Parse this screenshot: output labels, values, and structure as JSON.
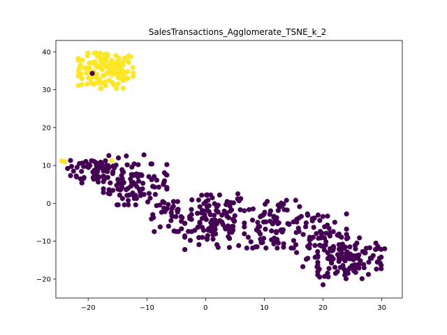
{
  "chart_data": {
    "type": "scatter",
    "title": "SalesTransactions_Agglomerate_TSNE_k_2",
    "xlabel": "",
    "ylabel": "",
    "xlim": [
      -25.5,
      33.5
    ],
    "ylim": [
      -25,
      43
    ],
    "xticks": [
      -20,
      -10,
      0,
      10,
      20,
      30
    ],
    "yticks": [
      -20,
      -10,
      0,
      10,
      20,
      30,
      40
    ],
    "grid": false,
    "legend": "none",
    "colors": {
      "cluster_0": "#440154",
      "cluster_1": "#fde725"
    },
    "clusters": [
      {
        "label": 1,
        "center": [
          -17,
          35
        ],
        "spread": [
          2.6,
          2.6
        ],
        "count": 130
      },
      {
        "label": 0,
        "center": [
          -18.5,
          9
        ],
        "spread": [
          2.5,
          2.0
        ],
        "count": 70
      },
      {
        "label": 0,
        "center": [
          -12,
          5
        ],
        "spread": [
          3.0,
          3.0
        ],
        "count": 90
      },
      {
        "label": 0,
        "center": [
          -6,
          -3.5
        ],
        "spread": [
          2.0,
          2.2
        ],
        "count": 35
      },
      {
        "label": 0,
        "center": [
          1.5,
          -5
        ],
        "spread": [
          2.8,
          4.0
        ],
        "count": 120
      },
      {
        "label": 0,
        "center": [
          12,
          -5.5
        ],
        "spread": [
          3.0,
          3.5
        ],
        "count": 90
      },
      {
        "label": 0,
        "center": [
          19.5,
          -10
        ],
        "spread": [
          2.5,
          4.0
        ],
        "count": 60
      },
      {
        "label": 0,
        "center": [
          24.5,
          -14.5
        ],
        "spread": [
          3.0,
          3.0
        ],
        "count": 120
      }
    ],
    "points": [
      {
        "x": -19.3,
        "y": 34.3,
        "label": 0
      },
      {
        "x": -24.5,
        "y": 11.2,
        "label": 1
      },
      {
        "x": -24.0,
        "y": 11.0,
        "label": 1
      },
      {
        "x": -16.0,
        "y": 11.3,
        "label": 1
      },
      {
        "x": -21.5,
        "y": 10.5,
        "label": 0
      },
      {
        "x": -22.5,
        "y": 8.5,
        "label": 0
      },
      {
        "x": -23.5,
        "y": 9.2,
        "label": 0
      },
      {
        "x": -10.5,
        "y": 12.8,
        "label": 0
      },
      {
        "x": -13.5,
        "y": 12.5,
        "label": 0
      },
      {
        "x": -9.0,
        "y": -3.0,
        "label": 0
      },
      {
        "x": -4.0,
        "y": -3.8,
        "label": 0
      },
      {
        "x": 5.5,
        "y": 2.5,
        "label": 0
      },
      {
        "x": 30.5,
        "y": -12.0,
        "label": 0
      },
      {
        "x": 29.0,
        "y": -10.5,
        "label": 0
      },
      {
        "x": 20.0,
        "y": -21.5,
        "label": 0
      },
      {
        "x": 27.0,
        "y": -17.0,
        "label": 0
      },
      {
        "x": 8.5,
        "y": -11.5,
        "label": 0
      },
      {
        "x": 15.5,
        "y": -13.0,
        "label": 0
      },
      {
        "x": 10.5,
        "y": 0.5,
        "label": 0
      },
      {
        "x": 22.0,
        "y": -5.0,
        "label": 0
      }
    ]
  }
}
